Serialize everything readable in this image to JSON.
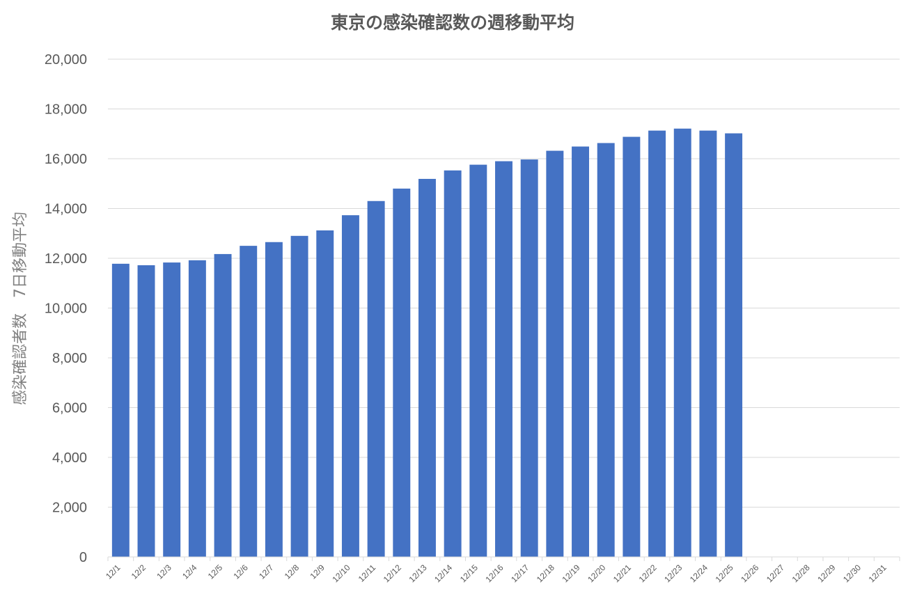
{
  "chart_data": {
    "type": "bar",
    "title": "東京の感染確認数の週移動平均",
    "xlabel": "",
    "ylabel": "感染確認者数　7日移動平均",
    "ylim": [
      0,
      20000
    ],
    "yticks": [
      0,
      2000,
      4000,
      6000,
      8000,
      10000,
      12000,
      14000,
      16000,
      18000,
      20000
    ],
    "ytick_labels": [
      "0",
      "2,000",
      "4,000",
      "6,000",
      "8,000",
      "10,000",
      "12,000",
      "14,000",
      "16,000",
      "18,000",
      "20,000"
    ],
    "grid": true,
    "legend": "none",
    "bar_color": "#4472C4",
    "categories": [
      "12/1",
      "12/2",
      "12/3",
      "12/4",
      "12/5",
      "12/6",
      "12/7",
      "12/8",
      "12/9",
      "12/10",
      "12/11",
      "12/12",
      "12/13",
      "12/14",
      "12/15",
      "12/16",
      "12/17",
      "12/18",
      "12/19",
      "12/20",
      "12/21",
      "12/22",
      "12/23",
      "12/24",
      "12/25",
      "12/26",
      "12/27",
      "12/28",
      "12/29",
      "12/30",
      "12/31"
    ],
    "values": [
      11780,
      11720,
      11830,
      11920,
      12170,
      12500,
      12650,
      12900,
      13120,
      13730,
      14300,
      14800,
      15190,
      15530,
      15760,
      15900,
      15970,
      16320,
      16490,
      16630,
      16880,
      17130,
      17210,
      17130,
      17020,
      null,
      null,
      null,
      null,
      null,
      null
    ]
  }
}
